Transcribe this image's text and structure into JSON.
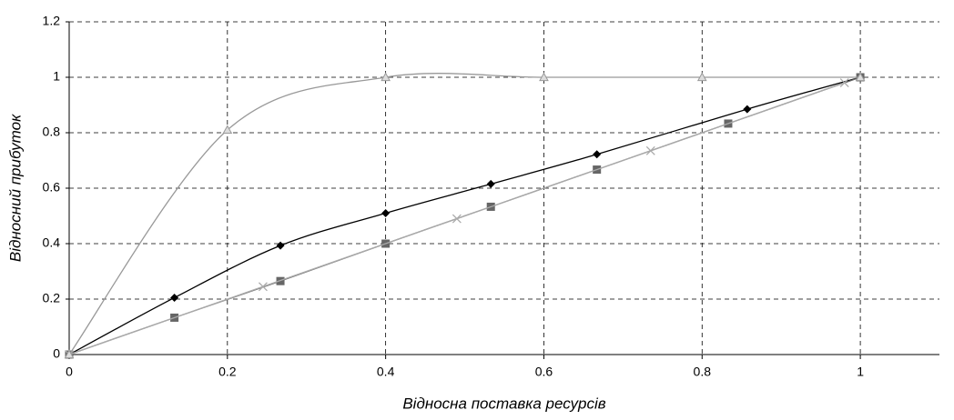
{
  "chart_data": {
    "type": "line",
    "x_label": "Відносна поставка ресурсів",
    "y_label": "Відносний прибуток",
    "xlim": [
      0,
      1.1
    ],
    "ylim": [
      0,
      1.2
    ],
    "xticks": [
      0,
      0.2,
      0.4,
      0.6,
      0.8,
      1
    ],
    "yticks": [
      0,
      0.2,
      0.4,
      0.6,
      0.8,
      1,
      1.2
    ],
    "grid": true,
    "smooth": true,
    "series": [
      {
        "color": "#000000",
        "marker": "diamond",
        "x": [
          0,
          0.133,
          0.267,
          0.4,
          0.533,
          0.667,
          0.857,
          1
        ],
        "values": [
          0,
          0.205,
          0.393,
          0.51,
          0.615,
          0.722,
          0.885,
          1
        ]
      },
      {
        "color": "#666666",
        "marker": "square",
        "x": [
          0,
          0.133,
          0.267,
          0.4,
          0.533,
          0.667,
          0.833,
          1
        ],
        "values": [
          0,
          0.133,
          0.265,
          0.4,
          0.533,
          0.667,
          0.833,
          1
        ]
      },
      {
        "color": "#aaaaaa",
        "marker": "x",
        "x": [
          0,
          0.245,
          0.49,
          0.735,
          0.98
        ],
        "values": [
          0,
          0.245,
          0.49,
          0.735,
          0.98
        ]
      },
      {
        "color": "#999999",
        "marker": "triangle",
        "x": [
          0,
          0.2,
          0.4,
          0.6,
          0.8,
          1
        ],
        "values": [
          0,
          0.81,
          1,
          1,
          1,
          1
        ]
      }
    ]
  }
}
